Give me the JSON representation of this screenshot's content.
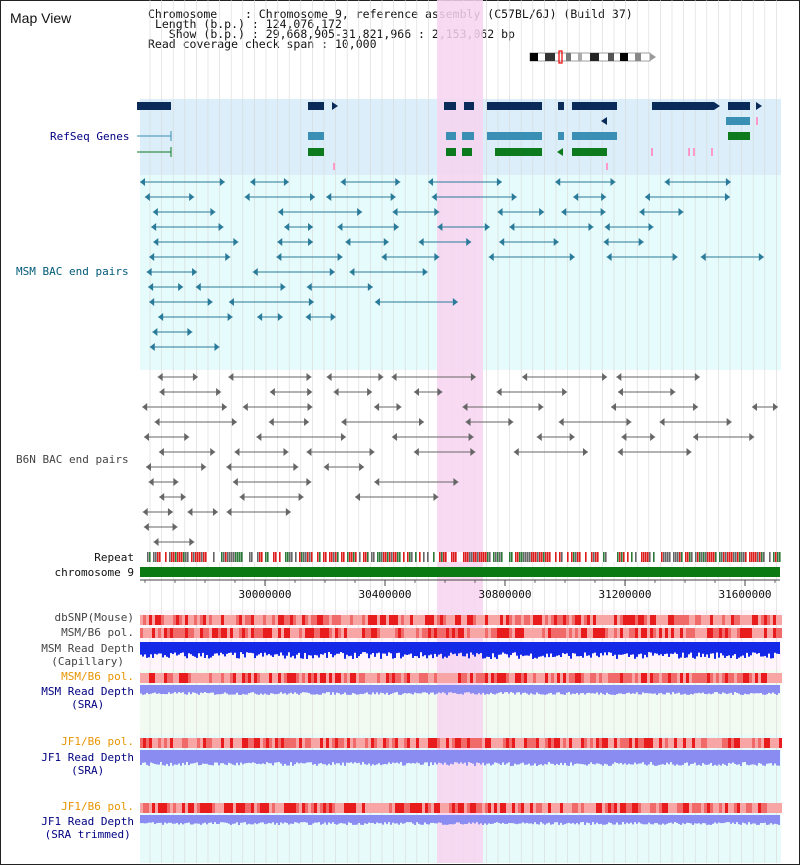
{
  "window": {
    "title": "Map View"
  },
  "info": {
    "chromosome_key": "Chromosome",
    "chromosome_val": "Chromosome 9, reference assembly (C57BL/6J) (Build 37)",
    "length_key": "Length (b.p.)",
    "length_val": "124,076,172",
    "show_key": "Show (b.p.)",
    "show_val": "29,668,905-31,821,966 : 2,153,062 bp",
    "coverage_key": "Read coverage check span",
    "coverage_val": "10,000"
  },
  "tracks": {
    "refseq": "RefSeq Genes",
    "msm_bac": "MSM BAC end pairs",
    "b6n_bac": "B6N BAC end pairs",
    "repeat": "Repeat",
    "chromosome": "chromosome 9",
    "dbsnp": "dbSNP(Mouse)",
    "msm_b6_pol_1": "MSM/B6 pol.",
    "msm_read_depth_cap_1": "MSM Read Depth",
    "msm_read_depth_cap_2": "(Capillary)",
    "msm_b6_pol_2": "MSM/B6 pol.",
    "msm_read_depth_sra_1": "MSM Read Depth",
    "msm_read_depth_sra_2": "(SRA)",
    "jf1_b6_pol_1": "JF1/B6 pol.",
    "jf1_read_depth_sra_1": "JF1 Read Depth",
    "jf1_read_depth_sra_2": "(SRA)",
    "jf1_b6_pol_2": "JF1/B6 pol.",
    "jf1_read_depth_trim_1": "JF1 Read Depth",
    "jf1_read_depth_trim_2": "(SRA trimmed)"
  },
  "axis": {
    "ticks": [
      "30000000",
      "30400000",
      "30800000",
      "31200000",
      "31600000"
    ]
  },
  "colors": {
    "refseq_band": "#dbeef9",
    "msm_band": "#e6fbfb",
    "highlight": "#f7d3f0",
    "gene_dark": "#0a2a5a",
    "gene_mid": "#3a8fb5",
    "gene_green": "#0d7a1e",
    "msm_pair": "#2a7a9a",
    "b6n_pair": "#666666",
    "chromosome_bar": "#0b7a12",
    "pol": "#e83a3a",
    "depth_cap": "#1428e8",
    "depth_sra": "#8a8cf2",
    "label_navy": "#000080",
    "label_teal": "#005a78",
    "label_orange": "#e89400"
  }
}
